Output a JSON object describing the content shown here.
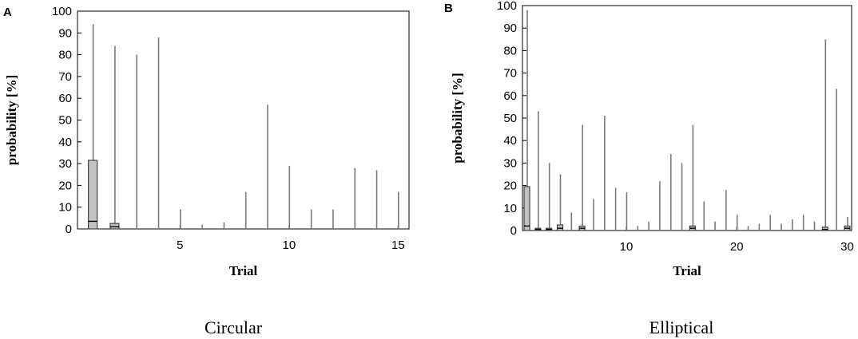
{
  "chart_data": [
    {
      "type": "bar",
      "panel": "A",
      "caption": "Circular",
      "xlabel": "Trial",
      "ylabel": "probability [%]",
      "ylim": [
        0,
        100
      ],
      "xlim": [
        0.3,
        15.5
      ],
      "yticks": [
        0,
        10,
        20,
        30,
        40,
        50,
        60,
        70,
        80,
        90,
        100
      ],
      "xticks": [
        5,
        10,
        15
      ],
      "grid": false,
      "x": [
        1,
        2,
        3,
        4,
        5,
        6,
        7,
        8,
        9,
        10,
        11,
        12,
        13,
        14,
        15
      ],
      "values": [
        94,
        84,
        80,
        88,
        9,
        2,
        3,
        17,
        57,
        29,
        9,
        9,
        28,
        27,
        17
      ],
      "boxes": [
        {
          "x": 1,
          "low": 0,
          "median": 3.5,
          "high": 31.5
        },
        {
          "x": 2,
          "low": 0,
          "median": 1,
          "high": 2.5
        }
      ]
    },
    {
      "type": "bar",
      "panel": "B",
      "caption": "Elliptical",
      "xlabel": "Trial",
      "ylabel": "probability [%]",
      "ylim": [
        0,
        100
      ],
      "xlim": [
        0.6,
        30.4
      ],
      "yticks": [
        0,
        10,
        20,
        30,
        40,
        50,
        60,
        70,
        80,
        90,
        100
      ],
      "xticks": [
        10,
        20,
        30
      ],
      "grid": false,
      "x": [
        1,
        2,
        3,
        4,
        5,
        6,
        7,
        8,
        9,
        10,
        11,
        12,
        13,
        14,
        15,
        16,
        17,
        18,
        19,
        20,
        21,
        22,
        23,
        24,
        25,
        26,
        27,
        28,
        29,
        30
      ],
      "values": [
        98,
        53,
        30,
        25,
        8,
        47,
        14,
        51,
        19,
        17,
        2,
        4,
        22,
        34,
        30,
        47,
        13,
        4,
        18,
        7,
        2,
        3,
        7,
        3,
        5,
        7,
        4,
        85,
        63,
        6
      ],
      "boxes": [
        {
          "x": 1,
          "low": 0,
          "median": 2,
          "high": 19.5
        },
        {
          "x": 2,
          "low": 0,
          "median": 0.5,
          "high": 1
        },
        {
          "x": 3,
          "low": 0,
          "median": 0.5,
          "high": 1
        },
        {
          "x": 4,
          "low": 0,
          "median": 1,
          "high": 2.5
        },
        {
          "x": 6,
          "low": 0,
          "median": 1,
          "high": 2
        },
        {
          "x": 16,
          "low": 0,
          "median": 1,
          "high": 2
        },
        {
          "x": 28,
          "low": 0,
          "median": 0.5,
          "high": 1.5
        },
        {
          "x": 30,
          "low": 0,
          "median": 1,
          "high": 2
        }
      ]
    }
  ]
}
